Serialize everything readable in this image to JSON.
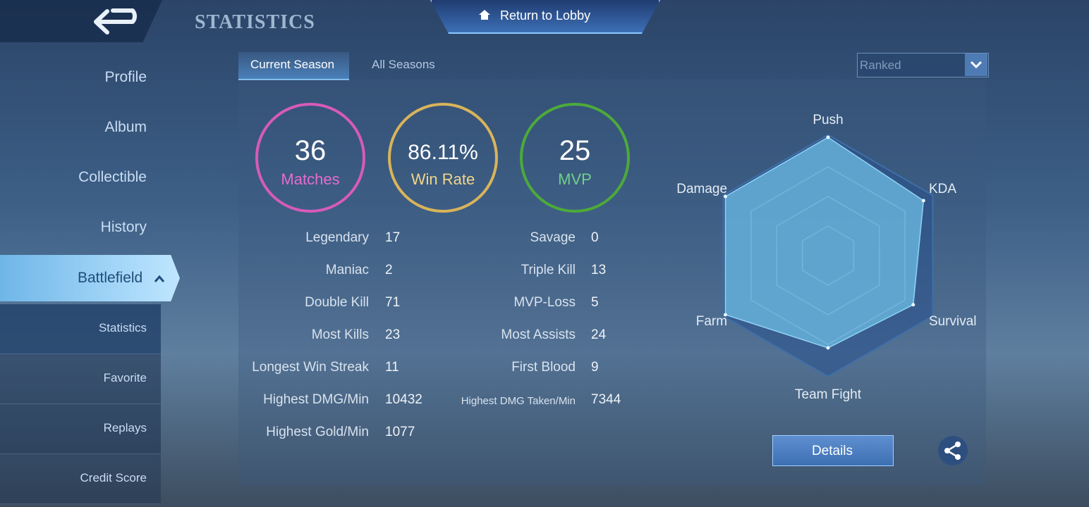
{
  "header": {
    "title": "STATISTICS",
    "lobby_button": "Return to Lobby"
  },
  "sidebar": {
    "items": [
      "Profile",
      "Album",
      "Collectible",
      "History",
      "Battlefield"
    ],
    "subitems": [
      "Statistics",
      "Favorite",
      "Replays",
      "Credit Score"
    ]
  },
  "tabs": [
    "Current Season",
    "All Seasons"
  ],
  "mode_select": "Ranked",
  "summary": [
    {
      "value": 36,
      "label": "Matches"
    },
    {
      "value": "86.11%",
      "label": "Win Rate"
    },
    {
      "value": 25,
      "label": "MVP"
    }
  ],
  "stats": {
    "left": [
      {
        "label": "Legendary",
        "value": 17
      },
      {
        "label": "Maniac",
        "value": 2
      },
      {
        "label": "Double Kill",
        "value": 71
      },
      {
        "label": "Most Kills",
        "value": 23
      },
      {
        "label": "Longest Win Streak",
        "value": 11
      },
      {
        "label": "Highest DMG/Min",
        "value": 10432
      },
      {
        "label": "Highest Gold/Min",
        "value": 1077
      }
    ],
    "right": [
      {
        "label": "Savage",
        "value": 0
      },
      {
        "label": "Triple Kill",
        "value": 13
      },
      {
        "label": "MVP-Loss",
        "value": 5
      },
      {
        "label": "Most Assists",
        "value": 24
      },
      {
        "label": "First Blood",
        "value": 9
      },
      {
        "label": "Highest DMG Taken/Min",
        "value": 7344
      }
    ]
  },
  "radar": {
    "axes": [
      "Push",
      "KDA",
      "Survival",
      "Team Fight",
      "Farm",
      "Damage"
    ],
    "values": [
      1.0,
      0.93,
      0.83,
      0.78,
      1.0,
      1.0
    ],
    "rlim": [
      0,
      1
    ]
  },
  "details_button": "Details"
}
